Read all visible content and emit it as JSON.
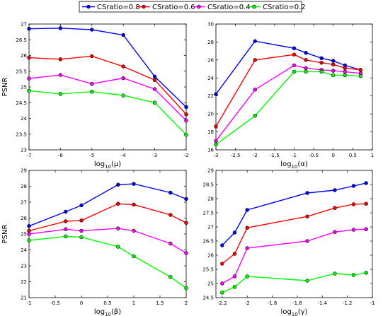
{
  "legend": [
    {
      "label": "CSratio=0.8",
      "color": "#0000ff"
    },
    {
      "label": "CSratio=0.6",
      "color": "#ff0000"
    },
    {
      "label": "CSratio=0.4",
      "color": "#ff00ff"
    },
    {
      "label": "CSratio=0.2",
      "color": "#00ff00"
    }
  ],
  "chart_data": [
    {
      "type": "line",
      "xlabel": "log10(μ)",
      "xlabel_base": "log",
      "xlabel_sub": "10",
      "xlabel_arg": "(μ)",
      "ylabel": "PSNR",
      "xlim": [
        -7,
        -2
      ],
      "ylim": [
        23,
        27
      ],
      "xticks": [
        -7,
        -6,
        -5,
        -4,
        -3,
        -2
      ],
      "yticks": [
        23,
        23.5,
        24,
        24.5,
        25,
        25.5,
        26,
        26.5,
        27
      ],
      "x": [
        -7,
        -6,
        -5,
        -4,
        -3,
        -2
      ],
      "series": [
        {
          "name": "CSratio=0.8",
          "values": [
            26.85,
            26.87,
            26.82,
            26.65,
            25.33,
            24.36
          ]
        },
        {
          "name": "CSratio=0.6",
          "values": [
            25.93,
            25.88,
            25.98,
            25.65,
            25.22,
            24.13
          ]
        },
        {
          "name": "CSratio=0.4",
          "values": [
            25.27,
            25.38,
            25.1,
            25.28,
            24.93,
            23.93
          ]
        },
        {
          "name": "CSratio=0.2",
          "values": [
            24.88,
            24.78,
            24.85,
            24.73,
            24.5,
            23.48
          ]
        }
      ]
    },
    {
      "type": "line",
      "xlabel": "log10(α)",
      "xlabel_base": "log",
      "xlabel_sub": "10",
      "xlabel_arg": "(α)",
      "ylabel": "",
      "xlim": [
        -3,
        1
      ],
      "ylim": [
        16,
        30
      ],
      "xticks": [
        -3,
        -2.5,
        -2,
        -1.5,
        -1,
        -0.5,
        0,
        0.5,
        1
      ],
      "yticks": [
        16,
        18,
        20,
        22,
        24,
        26,
        28,
        30
      ],
      "x": [
        -3,
        -2,
        -1,
        -0.7,
        -0.3,
        0,
        0.3,
        0.7
      ],
      "series": [
        {
          "name": "CSratio=0.8",
          "values": [
            22.2,
            28.1,
            27.3,
            26.8,
            26.2,
            25.9,
            25.4,
            24.9
          ]
        },
        {
          "name": "CSratio=0.6",
          "values": [
            18.6,
            26.0,
            26.6,
            26.0,
            25.7,
            25.5,
            25.1,
            24.9
          ]
        },
        {
          "name": "CSratio=0.4",
          "values": [
            17.0,
            22.7,
            25.4,
            25.1,
            24.9,
            24.8,
            24.7,
            24.5
          ]
        },
        {
          "name": "CSratio=0.2",
          "values": [
            16.6,
            19.8,
            24.7,
            24.7,
            24.7,
            24.3,
            24.3,
            24.2
          ]
        }
      ]
    },
    {
      "type": "line",
      "xlabel": "log10(β)",
      "xlabel_base": "log",
      "xlabel_sub": "10",
      "xlabel_arg": "(β)",
      "ylabel": "PSNR",
      "xlim": [
        -1,
        2
      ],
      "ylim": [
        21,
        29
      ],
      "xticks": [
        -1,
        -0.5,
        0,
        0.5,
        1,
        1.5,
        2
      ],
      "yticks": [
        21,
        22,
        23,
        24,
        25,
        26,
        27,
        28,
        29
      ],
      "x": [
        -1,
        -0.3,
        0,
        0.7,
        1,
        1.7,
        2
      ],
      "series": [
        {
          "name": "CSratio=0.8",
          "values": [
            25.5,
            26.4,
            26.8,
            28.1,
            28.15,
            27.6,
            27.2
          ]
        },
        {
          "name": "CSratio=0.6",
          "values": [
            25.2,
            25.8,
            25.85,
            26.9,
            26.85,
            26.2,
            25.7
          ]
        },
        {
          "name": "CSratio=0.4",
          "values": [
            25.0,
            25.3,
            25.2,
            25.35,
            25.2,
            24.4,
            23.8
          ]
        },
        {
          "name": "CSratio=0.2",
          "values": [
            24.6,
            24.85,
            24.8,
            24.2,
            23.6,
            22.3,
            21.6
          ]
        }
      ]
    },
    {
      "type": "line",
      "xlabel": "log10(γ)",
      "xlabel_base": "log",
      "xlabel_sub": "10",
      "xlabel_arg": "(γ)",
      "ylabel": "",
      "xlim": [
        -2.25,
        -1
      ],
      "ylim": [
        24.5,
        29
      ],
      "xticks": [
        -2.2,
        -2,
        -1.8,
        -1.6,
        -1.4,
        -1.2,
        -1
      ],
      "yticks": [
        24.5,
        25,
        25.5,
        26,
        26.5,
        27,
        27.5,
        28,
        28.5,
        29
      ],
      "x": [
        -2.2,
        -2.1,
        -2.0,
        -1.52,
        -1.3,
        -1.15,
        -1.05
      ],
      "series": [
        {
          "name": "CSratio=0.8",
          "values": [
            26.35,
            26.8,
            27.6,
            28.2,
            28.3,
            28.45,
            28.55
          ]
        },
        {
          "name": "CSratio=0.6",
          "values": [
            25.7,
            26.05,
            26.97,
            27.37,
            27.67,
            27.8,
            27.82
          ]
        },
        {
          "name": "CSratio=0.4",
          "values": [
            25.0,
            25.25,
            26.25,
            26.5,
            26.82,
            26.9,
            26.92
          ]
        },
        {
          "name": "CSratio=0.2",
          "values": [
            24.68,
            24.88,
            25.25,
            25.1,
            25.35,
            25.3,
            25.38
          ]
        }
      ]
    }
  ]
}
